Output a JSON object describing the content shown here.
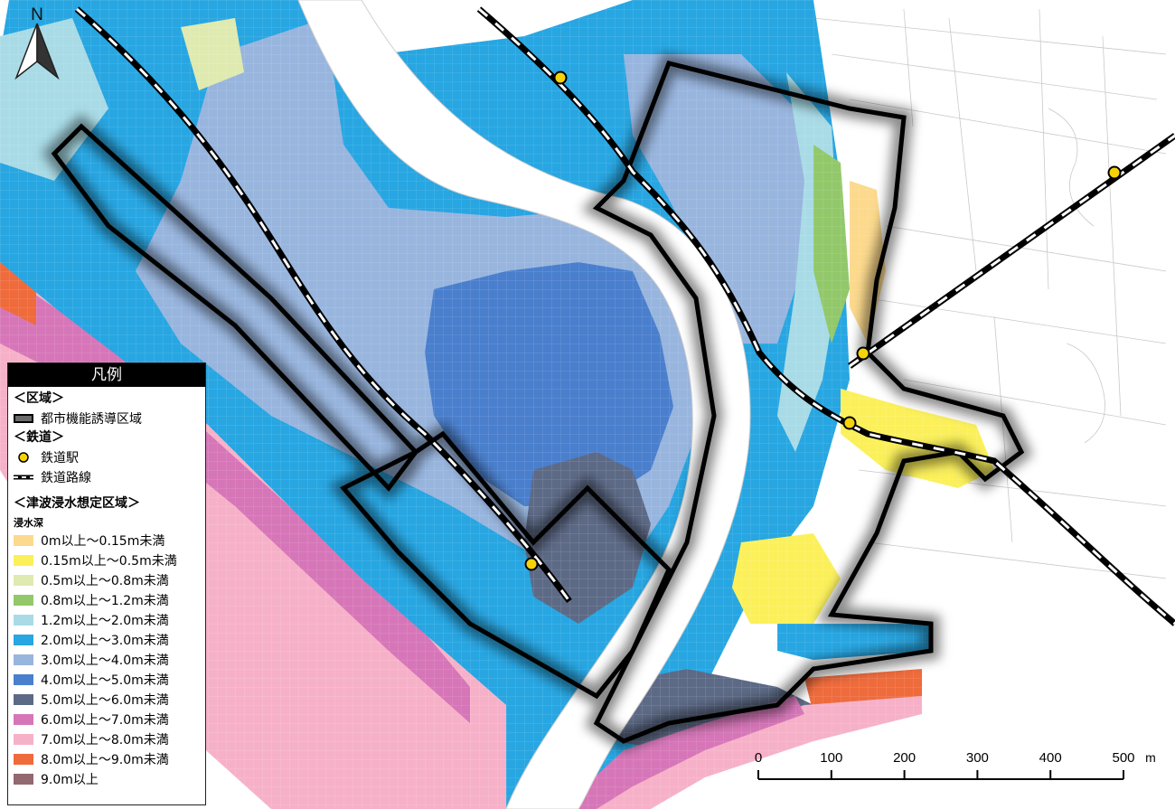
{
  "north_label": "N",
  "legend": {
    "title": "凡例",
    "zone_section": "＜区域＞",
    "zone_item": "都市機能誘導区域",
    "rail_section": "＜鉄道＞",
    "station_item": "鉄道駅",
    "line_item": "鉄道路線",
    "tsunami_section": "＜津波浸水想定区域＞",
    "depth_label": "浸水深",
    "depth_classes": [
      {
        "label": "0m以上～0.15m未満",
        "color": "#fcd98c"
      },
      {
        "label": "0.15m以上～0.5m未満",
        "color": "#fbf05a"
      },
      {
        "label": "0.5m以上～0.8m未満",
        "color": "#dfeab0"
      },
      {
        "label": "0.8m以上～1.2m未満",
        "color": "#92c86a"
      },
      {
        "label": "1.2m以上～2.0m未満",
        "color": "#a8dbe6"
      },
      {
        "label": "2.0m以上～3.0m未満",
        "color": "#27a6e2"
      },
      {
        "label": "3.0m以上～4.0m未満",
        "color": "#98b5de"
      },
      {
        "label": "4.0m以上～5.0m未満",
        "color": "#4a7fcd"
      },
      {
        "label": "5.0m以上～6.0m未満",
        "color": "#5d6a86"
      },
      {
        "label": "6.0m以上～7.0m未満",
        "color": "#d676b8"
      },
      {
        "label": "7.0m以上～8.0m未満",
        "color": "#f6b1c8"
      },
      {
        "label": "8.0m以上～9.0m未満",
        "color": "#ef6b3c"
      },
      {
        "label": "9.0m以上",
        "color": "#93686e"
      }
    ]
  },
  "scale_bar": {
    "ticks": [
      "0",
      "100",
      "200",
      "300",
      "400",
      "500"
    ],
    "unit": "m"
  }
}
